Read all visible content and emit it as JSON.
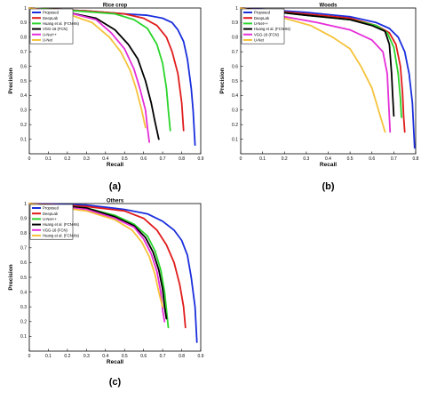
{
  "chart_data": [
    {
      "panel_label": "(a)",
      "type": "line",
      "title": "Rice crop",
      "xlabel": "Recall",
      "ylabel": "Precision",
      "xlim": [
        0,
        0.9
      ],
      "ylim": [
        0,
        1
      ],
      "xticks": [
        "0",
        "0.1",
        "0.2",
        "0.3",
        "0.4",
        "0.5",
        "0.6",
        "0.7",
        "0.8",
        "0.9"
      ],
      "yticks": [
        "0.1",
        "0.2",
        "0.3",
        "0.4",
        "0.5",
        "0.6",
        "0.7",
        "0.8",
        "0.9",
        "1"
      ],
      "grid": false,
      "legend_position": "top-left",
      "series": [
        {
          "name": "Proposed",
          "color": "#1a2edc",
          "points": [
            [
              0,
              1
            ],
            [
              0.3,
              0.98
            ],
            [
              0.5,
              0.96
            ],
            [
              0.62,
              0.95
            ],
            [
              0.7,
              0.93
            ],
            [
              0.75,
              0.9
            ],
            [
              0.78,
              0.85
            ],
            [
              0.81,
              0.77
            ],
            [
              0.83,
              0.65
            ],
            [
              0.85,
              0.45
            ],
            [
              0.86,
              0.3
            ],
            [
              0.87,
              0.06
            ]
          ]
        },
        {
          "name": "DeepLab",
          "color": "#e01b1b",
          "points": [
            [
              0,
              1
            ],
            [
              0.3,
              0.98
            ],
            [
              0.5,
              0.96
            ],
            [
              0.6,
              0.93
            ],
            [
              0.67,
              0.88
            ],
            [
              0.72,
              0.8
            ],
            [
              0.75,
              0.7
            ],
            [
              0.78,
              0.55
            ],
            [
              0.8,
              0.35
            ],
            [
              0.81,
              0.16
            ]
          ]
        },
        {
          "name": "Huang et al. (FCN-8s)",
          "color": "#2bd42b",
          "points": [
            [
              0,
              1
            ],
            [
              0.25,
              0.98
            ],
            [
              0.45,
              0.96
            ],
            [
              0.55,
              0.92
            ],
            [
              0.62,
              0.86
            ],
            [
              0.67,
              0.75
            ],
            [
              0.7,
              0.62
            ],
            [
              0.72,
              0.45
            ],
            [
              0.73,
              0.3
            ],
            [
              0.74,
              0.16
            ]
          ]
        },
        {
          "name": "VGG-16 (FCN)",
          "color": "#000000",
          "points": [
            [
              0,
              1
            ],
            [
              0.2,
              0.97
            ],
            [
              0.35,
              0.93
            ],
            [
              0.45,
              0.85
            ],
            [
              0.52,
              0.75
            ],
            [
              0.57,
              0.65
            ],
            [
              0.61,
              0.5
            ],
            [
              0.64,
              0.35
            ],
            [
              0.66,
              0.22
            ],
            [
              0.68,
              0.1
            ]
          ]
        },
        {
          "name": "U-Net++",
          "color": "#e52ed8",
          "points": [
            [
              0,
              1
            ],
            [
              0.2,
              0.97
            ],
            [
              0.35,
              0.92
            ],
            [
              0.43,
              0.83
            ],
            [
              0.5,
              0.72
            ],
            [
              0.55,
              0.58
            ],
            [
              0.58,
              0.45
            ],
            [
              0.61,
              0.3
            ],
            [
              0.62,
              0.18
            ],
            [
              0.63,
              0.08
            ]
          ]
        },
        {
          "name": "U-Net",
          "color": "#f5c23a",
          "points": [
            [
              0,
              1
            ],
            [
              0.2,
              0.96
            ],
            [
              0.33,
              0.9
            ],
            [
              0.42,
              0.8
            ],
            [
              0.48,
              0.7
            ],
            [
              0.53,
              0.57
            ],
            [
              0.56,
              0.45
            ],
            [
              0.59,
              0.3
            ],
            [
              0.61,
              0.18
            ]
          ]
        }
      ]
    },
    {
      "panel_label": "(b)",
      "type": "line",
      "title": "Woods",
      "xlabel": "Recall",
      "ylabel": "Precision",
      "xlim": [
        0,
        0.8
      ],
      "ylim": [
        0,
        1
      ],
      "xticks": [
        "0",
        "0.1",
        "0.2",
        "0.3",
        "0.4",
        "0.5",
        "0.6",
        "0.7",
        "0.8"
      ],
      "yticks": [
        "0.1",
        "0.2",
        "0.3",
        "0.4",
        "0.5",
        "0.6",
        "0.7",
        "0.8",
        "0.9",
        "1"
      ],
      "grid": false,
      "legend_position": "top-left",
      "series": [
        {
          "name": "Proposed",
          "color": "#1a2edc",
          "points": [
            [
              0,
              1
            ],
            [
              0.3,
              0.97
            ],
            [
              0.5,
              0.94
            ],
            [
              0.62,
              0.9
            ],
            [
              0.68,
              0.86
            ],
            [
              0.72,
              0.8
            ],
            [
              0.75,
              0.7
            ],
            [
              0.77,
              0.55
            ],
            [
              0.785,
              0.35
            ],
            [
              0.79,
              0.2
            ],
            [
              0.795,
              0.04
            ]
          ]
        },
        {
          "name": "DeepLab",
          "color": "#e01b1b",
          "points": [
            [
              0,
              1
            ],
            [
              0.3,
              0.96
            ],
            [
              0.5,
              0.93
            ],
            [
              0.62,
              0.88
            ],
            [
              0.68,
              0.83
            ],
            [
              0.71,
              0.75
            ],
            [
              0.73,
              0.6
            ],
            [
              0.74,
              0.42
            ],
            [
              0.745,
              0.25
            ],
            [
              0.75,
              0.15
            ]
          ]
        },
        {
          "name": "U-Net++",
          "color": "#2bd42b",
          "points": [
            [
              0,
              1
            ],
            [
              0.3,
              0.95
            ],
            [
              0.5,
              0.92
            ],
            [
              0.62,
              0.88
            ],
            [
              0.67,
              0.83
            ],
            [
              0.7,
              0.73
            ],
            [
              0.72,
              0.55
            ],
            [
              0.73,
              0.38
            ],
            [
              0.735,
              0.25
            ]
          ]
        },
        {
          "name": "Huang et al. (FCN-8s)",
          "color": "#000000",
          "points": [
            [
              0,
              1
            ],
            [
              0.3,
              0.95
            ],
            [
              0.5,
              0.92
            ],
            [
              0.6,
              0.88
            ],
            [
              0.66,
              0.84
            ],
            [
              0.68,
              0.75
            ],
            [
              0.69,
              0.55
            ],
            [
              0.695,
              0.4
            ],
            [
              0.7,
              0.26
            ]
          ]
        },
        {
          "name": "VGG-16 (FCN)",
          "color": "#e52ed8",
          "points": [
            [
              0,
              1
            ],
            [
              0.2,
              0.94
            ],
            [
              0.35,
              0.9
            ],
            [
              0.5,
              0.85
            ],
            [
              0.6,
              0.78
            ],
            [
              0.65,
              0.7
            ],
            [
              0.67,
              0.55
            ],
            [
              0.675,
              0.4
            ],
            [
              0.68,
              0.25
            ],
            [
              0.683,
              0.15
            ]
          ]
        },
        {
          "name": "U-Net",
          "color": "#f5c23a",
          "points": [
            [
              0,
              1
            ],
            [
              0.2,
              0.93
            ],
            [
              0.32,
              0.88
            ],
            [
              0.42,
              0.8
            ],
            [
              0.5,
              0.72
            ],
            [
              0.55,
              0.6
            ],
            [
              0.6,
              0.45
            ],
            [
              0.63,
              0.3
            ],
            [
              0.66,
              0.15
            ]
          ]
        }
      ]
    },
    {
      "panel_label": "(c)",
      "type": "line",
      "title": "Others",
      "xlabel": "Recall",
      "ylabel": "Precision",
      "xlim": [
        0,
        0.9
      ],
      "ylim": [
        0,
        1
      ],
      "xticks": [
        "0",
        "0.1",
        "0.2",
        "0.3",
        "0.4",
        "0.5",
        "0.6",
        "0.7",
        "0.8",
        "0.9"
      ],
      "yticks": [
        "0.1",
        "0.2",
        "0.3",
        "0.4",
        "0.5",
        "0.6",
        "0.7",
        "0.8",
        "0.9",
        "1"
      ],
      "grid": false,
      "legend_position": "top-left",
      "series": [
        {
          "name": "Proposed",
          "color": "#1a2edc",
          "points": [
            [
              0,
              1
            ],
            [
              0.3,
              0.99
            ],
            [
              0.5,
              0.96
            ],
            [
              0.62,
              0.93
            ],
            [
              0.7,
              0.88
            ],
            [
              0.76,
              0.82
            ],
            [
              0.8,
              0.75
            ],
            [
              0.83,
              0.65
            ],
            [
              0.85,
              0.5
            ],
            [
              0.87,
              0.3
            ],
            [
              0.88,
              0.06
            ]
          ]
        },
        {
          "name": "DeepLab",
          "color": "#e01b1b",
          "points": [
            [
              0,
              1
            ],
            [
              0.3,
              0.98
            ],
            [
              0.5,
              0.95
            ],
            [
              0.6,
              0.9
            ],
            [
              0.67,
              0.82
            ],
            [
              0.72,
              0.72
            ],
            [
              0.76,
              0.6
            ],
            [
              0.79,
              0.45
            ],
            [
              0.81,
              0.3
            ],
            [
              0.82,
              0.16
            ]
          ]
        },
        {
          "name": "U-Net++",
          "color": "#2bd42b",
          "points": [
            [
              0,
              1
            ],
            [
              0.3,
              0.97
            ],
            [
              0.45,
              0.92
            ],
            [
              0.55,
              0.86
            ],
            [
              0.62,
              0.78
            ],
            [
              0.66,
              0.68
            ],
            [
              0.69,
              0.55
            ],
            [
              0.71,
              0.4
            ],
            [
              0.72,
              0.28
            ],
            [
              0.73,
              0.16
            ]
          ]
        },
        {
          "name": "Huang et al. (FCN-8s)",
          "color": "#000000",
          "points": [
            [
              0,
              1
            ],
            [
              0.3,
              0.97
            ],
            [
              0.45,
              0.91
            ],
            [
              0.55,
              0.85
            ],
            [
              0.61,
              0.77
            ],
            [
              0.65,
              0.67
            ],
            [
              0.68,
              0.55
            ],
            [
              0.7,
              0.42
            ],
            [
              0.71,
              0.3
            ],
            [
              0.72,
              0.22
            ]
          ]
        },
        {
          "name": "VGG-16 (FCN)",
          "color": "#e52ed8",
          "points": [
            [
              0,
              1
            ],
            [
              0.3,
              0.96
            ],
            [
              0.45,
              0.9
            ],
            [
              0.55,
              0.84
            ],
            [
              0.6,
              0.76
            ],
            [
              0.64,
              0.66
            ],
            [
              0.67,
              0.54
            ],
            [
              0.69,
              0.4
            ],
            [
              0.7,
              0.28
            ],
            [
              0.71,
              0.2
            ]
          ]
        },
        {
          "name": "Huang et al. (FCN-8s)",
          "color": "#f5c23a",
          "points": [
            [
              0,
              1
            ],
            [
              0.3,
              0.95
            ],
            [
              0.45,
              0.89
            ],
            [
              0.54,
              0.82
            ],
            [
              0.59,
              0.74
            ],
            [
              0.63,
              0.64
            ],
            [
              0.66,
              0.52
            ],
            [
              0.68,
              0.4
            ],
            [
              0.7,
              0.3
            ]
          ]
        }
      ]
    }
  ]
}
